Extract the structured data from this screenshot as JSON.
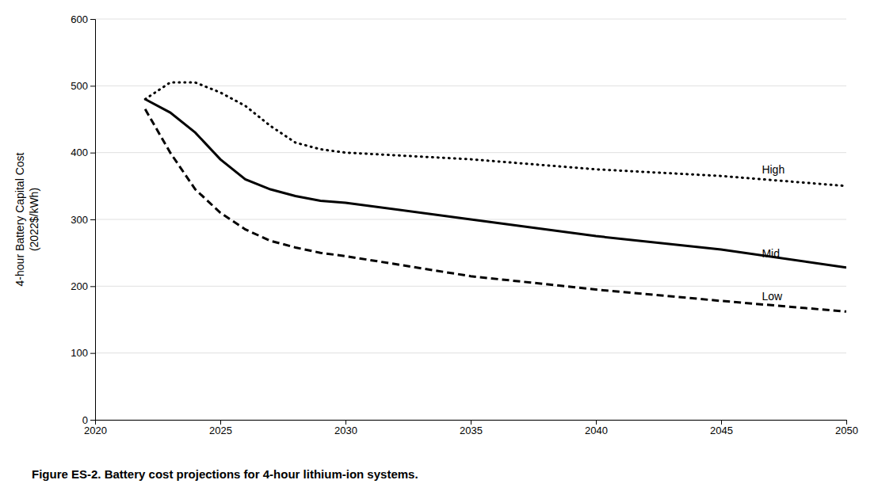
{
  "chart_data": {
    "type": "line",
    "title": "Figure ES-2. Battery cost projections for 4-hour lithium-ion systems.",
    "y_label": "4-hour Battery Capital Cost\n(2022$/kWh)",
    "x": [
      2022,
      2023,
      2024,
      2025,
      2026,
      2027,
      2028,
      2029,
      2030,
      2035,
      2040,
      2045,
      2050
    ],
    "series": [
      {
        "color": "#000000",
        "line_style": "dotted",
        "values": [
          480,
          505,
          505,
          490,
          470,
          440,
          415,
          405,
          400,
          390,
          375,
          365,
          350
        ]
      },
      {
        "color": "#000000",
        "line_style": "solid",
        "values": [
          480,
          460,
          430,
          390,
          360,
          345,
          335,
          328,
          325,
          300,
          275,
          255,
          228
        ]
      },
      {
        "color": "#000000",
        "line_style": "dashed",
        "values": [
          465,
          400,
          345,
          310,
          285,
          268,
          258,
          250,
          245,
          215,
          195,
          178,
          162
        ]
      }
    ],
    "annotations": [
      {
        "text": "High",
        "x": 2046.5,
        "y": 373
      },
      {
        "text": "Mid",
        "x": 2046.5,
        "y": 248
      },
      {
        "text": "Low",
        "x": 2046.5,
        "y": 183
      }
    ],
    "xlim": [
      2020,
      2050
    ],
    "ylim": [
      0,
      600
    ],
    "xticks": [
      2020,
      2025,
      2030,
      2035,
      2040,
      2045,
      2050
    ],
    "yticks": [
      0,
      100,
      200,
      300,
      400,
      500,
      600
    ],
    "grid": true
  }
}
